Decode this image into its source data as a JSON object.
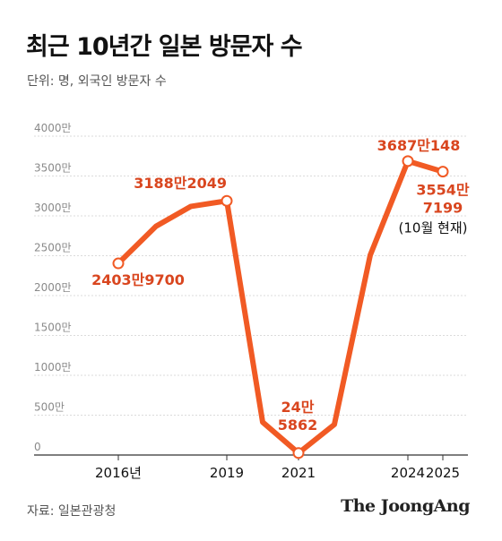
{
  "header": {
    "title": "최근 10년간 일본 방문자 수",
    "unit_label": "단위: 명, 외국인 방문자 수"
  },
  "footer": {
    "source": "자료: 일본관광청",
    "brand": "The JoongAng"
  },
  "colors": {
    "line": "#f15a24",
    "label": "#d9461f",
    "grid": "#cfcfcf",
    "axis": "#333333"
  },
  "chart_data": {
    "type": "line",
    "title": "최근 10년간 일본 방문자 수",
    "ylabel": "",
    "xlabel": "",
    "ylim": [
      0,
      40000000
    ],
    "yticks": [
      "0",
      "500만",
      "1000만",
      "1500만",
      "2000만",
      "2500만",
      "3000만",
      "3500만",
      "4000만"
    ],
    "ytick_values": [
      0,
      5000000,
      10000000,
      15000000,
      20000000,
      25000000,
      30000000,
      35000000,
      40000000
    ],
    "xticks": [
      "2016년",
      "2019",
      "2021",
      "2024",
      "2025"
    ],
    "xtick_values": [
      2016,
      2019,
      2021,
      2024,
      2025
    ],
    "grid": true,
    "x": [
      2016,
      2017,
      2018,
      2019,
      2020,
      2021,
      2022,
      2023,
      2024,
      2025
    ],
    "values": [
      24039700,
      28690000,
      31190000,
      31882049,
      4120000,
      245862,
      3830000,
      25070000,
      36870148,
      35547199
    ],
    "annotations": [
      {
        "x": 2016,
        "lines": [
          "2403만9700"
        ]
      },
      {
        "x": 2019,
        "lines": [
          "3188만2049"
        ]
      },
      {
        "x": 2021,
        "lines": [
          "24만",
          "5862"
        ]
      },
      {
        "x": 2024,
        "lines": [
          "3687만148"
        ]
      },
      {
        "x": 2025,
        "lines": [
          "3554만",
          "7199"
        ],
        "note": "(10월 현재)"
      }
    ]
  }
}
